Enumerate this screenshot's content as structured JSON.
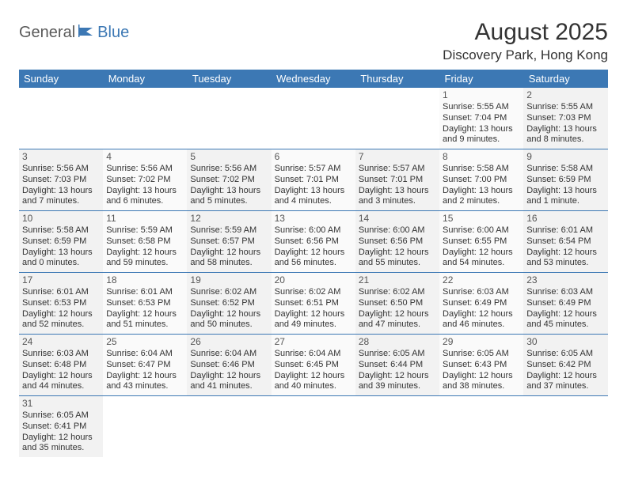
{
  "brand": {
    "part1": "General",
    "part2": "Blue"
  },
  "title": "August 2025",
  "location": "Discovery Park, Hong Kong",
  "colors": {
    "header_bg": "#3c78b4",
    "header_text": "#ffffff",
    "row_alt_a": "#f2f2f2",
    "row_alt_b": "#fafafa",
    "border": "#3c78b4",
    "logo_gray": "#5a5a5a",
    "logo_blue": "#3c78b4"
  },
  "day_headers": [
    "Sunday",
    "Monday",
    "Tuesday",
    "Wednesday",
    "Thursday",
    "Friday",
    "Saturday"
  ],
  "weeks": [
    [
      null,
      null,
      null,
      null,
      null,
      {
        "n": "1",
        "sr": "Sunrise: 5:55 AM",
        "ss": "Sunset: 7:04 PM",
        "dl": "Daylight: 13 hours and 9 minutes."
      },
      {
        "n": "2",
        "sr": "Sunrise: 5:55 AM",
        "ss": "Sunset: 7:03 PM",
        "dl": "Daylight: 13 hours and 8 minutes."
      }
    ],
    [
      {
        "n": "3",
        "sr": "Sunrise: 5:56 AM",
        "ss": "Sunset: 7:03 PM",
        "dl": "Daylight: 13 hours and 7 minutes."
      },
      {
        "n": "4",
        "sr": "Sunrise: 5:56 AM",
        "ss": "Sunset: 7:02 PM",
        "dl": "Daylight: 13 hours and 6 minutes."
      },
      {
        "n": "5",
        "sr": "Sunrise: 5:56 AM",
        "ss": "Sunset: 7:02 PM",
        "dl": "Daylight: 13 hours and 5 minutes."
      },
      {
        "n": "6",
        "sr": "Sunrise: 5:57 AM",
        "ss": "Sunset: 7:01 PM",
        "dl": "Daylight: 13 hours and 4 minutes."
      },
      {
        "n": "7",
        "sr": "Sunrise: 5:57 AM",
        "ss": "Sunset: 7:01 PM",
        "dl": "Daylight: 13 hours and 3 minutes."
      },
      {
        "n": "8",
        "sr": "Sunrise: 5:58 AM",
        "ss": "Sunset: 7:00 PM",
        "dl": "Daylight: 13 hours and 2 minutes."
      },
      {
        "n": "9",
        "sr": "Sunrise: 5:58 AM",
        "ss": "Sunset: 6:59 PM",
        "dl": "Daylight: 13 hours and 1 minute."
      }
    ],
    [
      {
        "n": "10",
        "sr": "Sunrise: 5:58 AM",
        "ss": "Sunset: 6:59 PM",
        "dl": "Daylight: 13 hours and 0 minutes."
      },
      {
        "n": "11",
        "sr": "Sunrise: 5:59 AM",
        "ss": "Sunset: 6:58 PM",
        "dl": "Daylight: 12 hours and 59 minutes."
      },
      {
        "n": "12",
        "sr": "Sunrise: 5:59 AM",
        "ss": "Sunset: 6:57 PM",
        "dl": "Daylight: 12 hours and 58 minutes."
      },
      {
        "n": "13",
        "sr": "Sunrise: 6:00 AM",
        "ss": "Sunset: 6:56 PM",
        "dl": "Daylight: 12 hours and 56 minutes."
      },
      {
        "n": "14",
        "sr": "Sunrise: 6:00 AM",
        "ss": "Sunset: 6:56 PM",
        "dl": "Daylight: 12 hours and 55 minutes."
      },
      {
        "n": "15",
        "sr": "Sunrise: 6:00 AM",
        "ss": "Sunset: 6:55 PM",
        "dl": "Daylight: 12 hours and 54 minutes."
      },
      {
        "n": "16",
        "sr": "Sunrise: 6:01 AM",
        "ss": "Sunset: 6:54 PM",
        "dl": "Daylight: 12 hours and 53 minutes."
      }
    ],
    [
      {
        "n": "17",
        "sr": "Sunrise: 6:01 AM",
        "ss": "Sunset: 6:53 PM",
        "dl": "Daylight: 12 hours and 52 minutes."
      },
      {
        "n": "18",
        "sr": "Sunrise: 6:01 AM",
        "ss": "Sunset: 6:53 PM",
        "dl": "Daylight: 12 hours and 51 minutes."
      },
      {
        "n": "19",
        "sr": "Sunrise: 6:02 AM",
        "ss": "Sunset: 6:52 PM",
        "dl": "Daylight: 12 hours and 50 minutes."
      },
      {
        "n": "20",
        "sr": "Sunrise: 6:02 AM",
        "ss": "Sunset: 6:51 PM",
        "dl": "Daylight: 12 hours and 49 minutes."
      },
      {
        "n": "21",
        "sr": "Sunrise: 6:02 AM",
        "ss": "Sunset: 6:50 PM",
        "dl": "Daylight: 12 hours and 47 minutes."
      },
      {
        "n": "22",
        "sr": "Sunrise: 6:03 AM",
        "ss": "Sunset: 6:49 PM",
        "dl": "Daylight: 12 hours and 46 minutes."
      },
      {
        "n": "23",
        "sr": "Sunrise: 6:03 AM",
        "ss": "Sunset: 6:49 PM",
        "dl": "Daylight: 12 hours and 45 minutes."
      }
    ],
    [
      {
        "n": "24",
        "sr": "Sunrise: 6:03 AM",
        "ss": "Sunset: 6:48 PM",
        "dl": "Daylight: 12 hours and 44 minutes."
      },
      {
        "n": "25",
        "sr": "Sunrise: 6:04 AM",
        "ss": "Sunset: 6:47 PM",
        "dl": "Daylight: 12 hours and 43 minutes."
      },
      {
        "n": "26",
        "sr": "Sunrise: 6:04 AM",
        "ss": "Sunset: 6:46 PM",
        "dl": "Daylight: 12 hours and 41 minutes."
      },
      {
        "n": "27",
        "sr": "Sunrise: 6:04 AM",
        "ss": "Sunset: 6:45 PM",
        "dl": "Daylight: 12 hours and 40 minutes."
      },
      {
        "n": "28",
        "sr": "Sunrise: 6:05 AM",
        "ss": "Sunset: 6:44 PM",
        "dl": "Daylight: 12 hours and 39 minutes."
      },
      {
        "n": "29",
        "sr": "Sunrise: 6:05 AM",
        "ss": "Sunset: 6:43 PM",
        "dl": "Daylight: 12 hours and 38 minutes."
      },
      {
        "n": "30",
        "sr": "Sunrise: 6:05 AM",
        "ss": "Sunset: 6:42 PM",
        "dl": "Daylight: 12 hours and 37 minutes."
      }
    ],
    [
      {
        "n": "31",
        "sr": "Sunrise: 6:05 AM",
        "ss": "Sunset: 6:41 PM",
        "dl": "Daylight: 12 hours and 35 minutes."
      },
      null,
      null,
      null,
      null,
      null,
      null
    ]
  ]
}
